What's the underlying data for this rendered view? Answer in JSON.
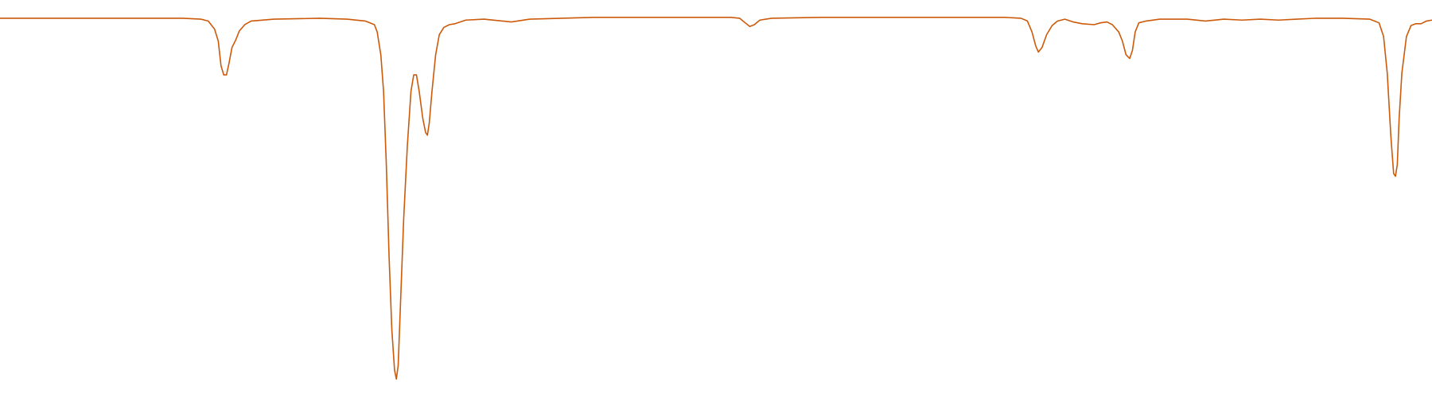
{
  "chart_data": {
    "type": "line",
    "x": [
      0,
      30,
      100,
      200,
      220,
      228,
      235,
      239,
      242,
      245,
      248,
      251,
      254,
      258,
      262,
      268,
      275,
      300,
      350,
      380,
      400,
      410,
      413,
      417,
      420,
      423,
      426,
      429,
      432,
      434,
      436,
      439,
      442,
      446,
      450,
      453,
      456,
      459,
      463,
      466,
      468,
      470,
      473,
      477,
      481,
      486,
      492,
      498,
      510,
      530,
      550,
      560,
      580,
      650,
      750,
      800,
      810,
      816,
      821,
      826,
      832,
      845,
      900,
      1000,
      1100,
      1118,
      1125,
      1130,
      1134,
      1137,
      1141,
      1146,
      1152,
      1158,
      1166,
      1175,
      1185,
      1198,
      1205,
      1212,
      1218,
      1225,
      1229,
      1233,
      1237,
      1240,
      1243,
      1247,
      1255,
      1270,
      1300,
      1320,
      1340,
      1360,
      1380,
      1400,
      1420,
      1440,
      1470,
      1500,
      1510,
      1515,
      1519,
      1523,
      1526,
      1528,
      1530,
      1532,
      1535,
      1540,
      1545,
      1550,
      1556,
      1562,
      1568
    ],
    "series": [
      {
        "color": "#cc5a0a",
        "values": [
          400,
          400,
          400,
          400,
          399,
          397,
          388,
          375,
          348,
          338,
          338,
          352,
          368,
          376,
          386,
          393,
          397,
          399,
          400,
          399,
          397,
          393,
          385,
          360,
          320,
          240,
          140,
          60,
          15,
          5,
          20,
          100,
          180,
          260,
          320,
          338,
          338,
          320,
          290,
          275,
          272,
          285,
          320,
          360,
          382,
          390,
          393,
          394,
          398,
          399,
          397,
          396,
          399,
          401,
          401,
          401,
          400,
          395,
          391,
          393,
          398,
          400,
          401,
          401,
          401,
          400,
          397,
          385,
          370,
          363,
          368,
          382,
          392,
          397,
          399,
          396,
          394,
          393,
          395,
          396,
          393,
          385,
          375,
          360,
          356,
          365,
          385,
          395,
          397,
          399,
          399,
          397,
          399,
          398,
          399,
          398,
          399,
          400,
          400,
          399,
          395,
          380,
          340,
          270,
          230,
          227,
          240,
          290,
          340,
          380,
          392,
          394,
          394,
          397,
          398
        ]
      }
    ],
    "xlim": [
      0,
      1568
    ],
    "ylim": [
      0,
      420
    ]
  }
}
